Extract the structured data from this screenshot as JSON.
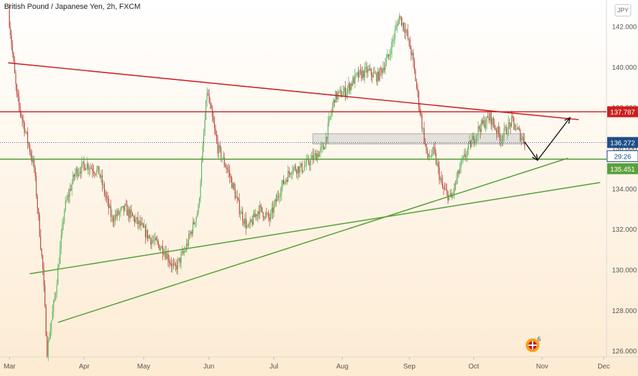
{
  "header": {
    "title": "British Pound / Japanese Yen, 2h, FXCM",
    "currency_button": "JPY"
  },
  "branding": {
    "logo_badge": "6"
  },
  "colors": {
    "bg_top": "#ffffff",
    "bg_bottom": "#fdebd2",
    "up_candle": "#4caf50",
    "down_candle": "#b03a2e",
    "resistance": "#cc1f1f",
    "support": "#5aa13c",
    "price_last": "#1d4e89",
    "text": "#333333"
  },
  "chart_data": {
    "type": "line",
    "title": "British Pound / Japanese Yen, 2h, FXCM",
    "xlabel": "",
    "ylabel": "",
    "x_tick_labels": [
      "Mar",
      "Apr",
      "May",
      "Jun",
      "Jul",
      "Aug",
      "Sep",
      "Oct",
      "Nov",
      "Dec"
    ],
    "y_tick_labels": [
      "126.000",
      "128.000",
      "130.000",
      "132.000",
      "134.000",
      "136.000",
      "138.000",
      "140.000",
      "142.000"
    ],
    "ylim": [
      125.7,
      143.3
    ],
    "grid": false,
    "series": [
      {
        "x": [
          "Mar 1",
          "Mar 5",
          "Mar 9",
          "Mar 13",
          "Mar 17",
          "Mar 19",
          "Mar 23",
          "Mar 27",
          "Apr 1",
          "Apr 6",
          "Apr 12",
          "Apr 18",
          "Apr 24",
          "Apr 30",
          "May 6",
          "May 12",
          "May 17",
          "May 22",
          "May 28",
          "Jun 1",
          "Jun 6",
          "Jun 11",
          "Jun 16",
          "Jun 20",
          "Jun 25",
          "Jun 30",
          "Jul 5",
          "Jul 10",
          "Jul 15",
          "Jul 20",
          "Jul 25",
          "Jul 30",
          "Aug 4",
          "Aug 9",
          "Aug 14",
          "Aug 19",
          "Aug 24",
          "Aug 29",
          "Sep 1",
          "Sep 4",
          "Sep 8",
          "Sep 11",
          "Sep 14",
          "Sep 18",
          "Sep 22",
          "Sep 26",
          "Sep 30",
          "Oct 5",
          "Oct 10",
          "Oct 15",
          "Oct 20",
          "Oct 23",
          "Oct 26"
        ],
        "values": [
          142.8,
          138.5,
          136.8,
          135.0,
          130.0,
          126.0,
          129.0,
          133.0,
          134.8,
          135.2,
          134.8,
          132.5,
          133.0,
          132.3,
          131.5,
          131.0,
          130.0,
          131.0,
          133.0,
          138.8,
          136.0,
          134.8,
          133.0,
          132.0,
          133.0,
          132.5,
          134.0,
          135.0,
          135.0,
          135.5,
          136.0,
          138.5,
          138.8,
          139.5,
          139.8,
          139.5,
          140.5,
          142.5,
          141.8,
          140.5,
          137.5,
          135.5,
          135.8,
          134.0,
          133.5,
          135.0,
          136.0,
          137.0,
          137.5,
          136.5,
          137.3,
          136.8,
          136.3
        ]
      }
    ],
    "horizontal_levels": [
      {
        "value": 137.787,
        "label": "137.787",
        "color": "#cc1f1f"
      },
      {
        "value": 135.451,
        "label": "135.451",
        "color": "#5aa13c"
      }
    ],
    "current_price": {
      "value": 136.272,
      "label": "136.272",
      "countdown": "29:26"
    },
    "trendlines": [
      {
        "name": "falling resistance",
        "from": [
          "Mar 1",
          140.2
        ],
        "to": [
          "Nov 20",
          137.4
        ]
      },
      {
        "name": "rising support A",
        "from": [
          "Mar 24",
          127.4
        ],
        "to": [
          "Nov 15",
          135.5
        ]
      },
      {
        "name": "rising support B",
        "from": [
          "Feb 20",
          129.8
        ],
        "to": [
          "Nov 30",
          134.3
        ]
      }
    ],
    "projection": [
      [
        "Oct 26",
        136.3
      ],
      [
        "Nov 1",
        135.4
      ],
      [
        "Nov 16",
        137.5
      ]
    ],
    "zone": {
      "from": "Jul 20",
      "to": "Oct 26",
      "low": 136.2,
      "high": 136.7
    }
  }
}
